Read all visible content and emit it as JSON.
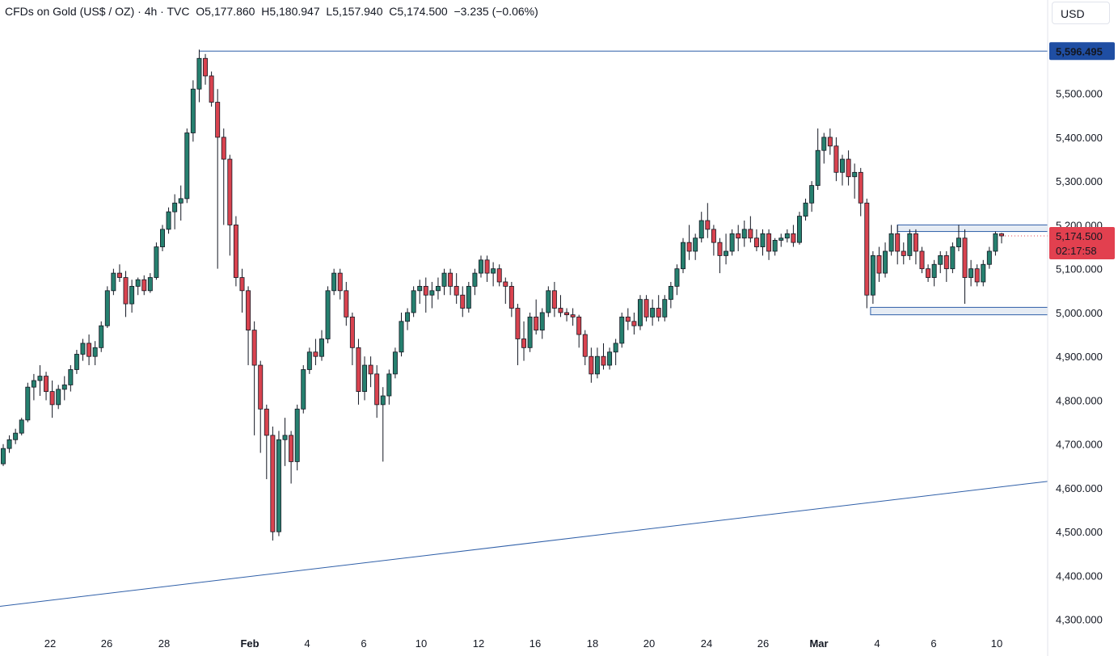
{
  "header": {
    "symbol": "CFDs on Gold (US$ / OZ)",
    "interval": "4h",
    "source": "TVC",
    "open": "O5,177.860",
    "high": "H5,180.947",
    "low": "L5,157.940",
    "close": "C5,174.500",
    "change": "−3.235 (−0.06%)"
  },
  "currency_button": "USD",
  "colors": {
    "up": "#26806f",
    "down": "#d9434f",
    "line": "#2f5fa8",
    "marker_bg": "#1f4ea3",
    "last_bg": "#e2404f"
  },
  "markers": {
    "high_level": "5,596.495",
    "last_price": "5,174.500",
    "countdown": "02:17:58"
  },
  "chart_data": {
    "type": "candlestick",
    "y_axis": {
      "ticks": [
        "5,500.000",
        "5,400.000",
        "5,300.000",
        "5,200.000",
        "5,100.000",
        "5,000.000",
        "4,900.000",
        "4,800.000",
        "4,700.000",
        "4,600.000",
        "4,500.000",
        "4,400.000",
        "4,300.000"
      ],
      "ylim": [
        4270,
        5680
      ]
    },
    "x_axis": {
      "ticks": [
        "22",
        "26",
        "28",
        "Feb",
        "4",
        "6",
        "10",
        "12",
        "16",
        "18",
        "20",
        "24",
        "26",
        "Mar",
        "4",
        "6",
        "10"
      ]
    },
    "levels": {
      "horizontal_high": 5596.495,
      "range_top": [
        5185,
        5200
      ],
      "range_bottom": [
        4995,
        5012
      ],
      "trendline": {
        "from": 4330,
        "to": 4615
      }
    },
    "ohlc": [
      [
        4655,
        4700,
        4650,
        4690
      ],
      [
        4690,
        4720,
        4680,
        4710
      ],
      [
        4710,
        4735,
        4700,
        4725
      ],
      [
        4725,
        4760,
        4720,
        4755
      ],
      [
        4755,
        4840,
        4750,
        4830
      ],
      [
        4830,
        4860,
        4800,
        4845
      ],
      [
        4845,
        4880,
        4810,
        4855
      ],
      [
        4855,
        4865,
        4800,
        4820
      ],
      [
        4820,
        4845,
        4760,
        4790
      ],
      [
        4790,
        4835,
        4780,
        4825
      ],
      [
        4825,
        4855,
        4800,
        4835
      ],
      [
        4835,
        4880,
        4820,
        4870
      ],
      [
        4870,
        4915,
        4860,
        4905
      ],
      [
        4905,
        4940,
        4890,
        4930
      ],
      [
        4930,
        4950,
        4880,
        4900
      ],
      [
        4900,
        4935,
        4880,
        4920
      ],
      [
        4920,
        4980,
        4910,
        4970
      ],
      [
        4970,
        5060,
        4965,
        5050
      ],
      [
        5050,
        5100,
        5040,
        5090
      ],
      [
        5090,
        5110,
        5070,
        5080
      ],
      [
        5080,
        5095,
        4990,
        5020
      ],
      [
        5020,
        5075,
        5000,
        5060
      ],
      [
        5060,
        5080,
        5040,
        5075
      ],
      [
        5075,
        5085,
        5040,
        5050
      ],
      [
        5050,
        5090,
        5045,
        5080
      ],
      [
        5080,
        5160,
        5075,
        5150
      ],
      [
        5150,
        5200,
        5140,
        5190
      ],
      [
        5190,
        5240,
        5180,
        5230
      ],
      [
        5230,
        5270,
        5190,
        5250
      ],
      [
        5250,
        5290,
        5210,
        5260
      ],
      [
        5260,
        5420,
        5250,
        5410
      ],
      [
        5410,
        5530,
        5390,
        5510
      ],
      [
        5510,
        5600,
        5480,
        5580
      ],
      [
        5580,
        5590,
        5520,
        5540
      ],
      [
        5540,
        5550,
        5470,
        5480
      ],
      [
        5480,
        5510,
        5100,
        5400
      ],
      [
        5400,
        5420,
        5200,
        5350
      ],
      [
        5350,
        5360,
        5130,
        5200
      ],
      [
        5200,
        5220,
        5060,
        5080
      ],
      [
        5080,
        5100,
        5000,
        5050
      ],
      [
        5050,
        5060,
        4880,
        4960
      ],
      [
        4960,
        4980,
        4720,
        4880
      ],
      [
        4880,
        4890,
        4680,
        4780
      ],
      [
        4780,
        4790,
        4620,
        4720
      ],
      [
        4720,
        4740,
        4480,
        4500
      ],
      [
        4500,
        4730,
        4490,
        4710
      ],
      [
        4710,
        4760,
        4650,
        4720
      ],
      [
        4720,
        4730,
        4610,
        4660
      ],
      [
        4660,
        4790,
        4640,
        4780
      ],
      [
        4780,
        4880,
        4770,
        4870
      ],
      [
        4870,
        4920,
        4860,
        4910
      ],
      [
        4910,
        4940,
        4880,
        4900
      ],
      [
        4900,
        4960,
        4890,
        4940
      ],
      [
        4940,
        5060,
        4930,
        5050
      ],
      [
        5050,
        5100,
        5040,
        5090
      ],
      [
        5090,
        5100,
        5030,
        5050
      ],
      [
        5050,
        5070,
        4970,
        4990
      ],
      [
        4990,
        5000,
        4880,
        4920
      ],
      [
        4920,
        4940,
        4790,
        4820
      ],
      [
        4820,
        4900,
        4800,
        4880
      ],
      [
        4880,
        4900,
        4830,
        4860
      ],
      [
        4860,
        4880,
        4760,
        4790
      ],
      [
        4790,
        4830,
        4660,
        4810
      ],
      [
        4810,
        4870,
        4790,
        4860
      ],
      [
        4860,
        4920,
        4850,
        4910
      ],
      [
        4910,
        5000,
        4900,
        4980
      ],
      [
        4980,
        5010,
        4960,
        5000
      ],
      [
        5000,
        5060,
        4990,
        5050
      ],
      [
        5050,
        5075,
        5020,
        5060
      ],
      [
        5060,
        5080,
        5000,
        5040
      ],
      [
        5040,
        5070,
        5010,
        5050
      ],
      [
        5050,
        5080,
        5030,
        5060
      ],
      [
        5060,
        5100,
        5040,
        5090
      ],
      [
        5090,
        5100,
        5040,
        5060
      ],
      [
        5060,
        5090,
        5020,
        5040
      ],
      [
        5040,
        5060,
        4990,
        5010
      ],
      [
        5010,
        5070,
        5000,
        5060
      ],
      [
        5060,
        5100,
        5040,
        5090
      ],
      [
        5090,
        5130,
        5080,
        5120
      ],
      [
        5120,
        5130,
        5070,
        5090
      ],
      [
        5090,
        5115,
        5060,
        5100
      ],
      [
        5100,
        5110,
        5060,
        5070
      ],
      [
        5070,
        5080,
        5020,
        5060
      ],
      [
        5060,
        5070,
        4990,
        5010
      ],
      [
        5010,
        5020,
        4880,
        4940
      ],
      [
        4940,
        4980,
        4890,
        4920
      ],
      [
        4920,
        5000,
        4910,
        4990
      ],
      [
        4990,
        5030,
        4950,
        4960
      ],
      [
        4960,
        5010,
        4940,
        5000
      ],
      [
        5000,
        5060,
        4990,
        5050
      ],
      [
        5050,
        5070,
        4990,
        5010
      ],
      [
        5010,
        5040,
        4990,
        5000
      ],
      [
        5000,
        5010,
        4980,
        4995
      ],
      [
        4995,
        5010,
        4970,
        4990
      ],
      [
        4990,
        4995,
        4920,
        4950
      ],
      [
        4950,
        4960,
        4880,
        4900
      ],
      [
        4900,
        4920,
        4840,
        4860
      ],
      [
        4860,
        4920,
        4850,
        4900
      ],
      [
        4900,
        4930,
        4870,
        4880
      ],
      [
        4880,
        4920,
        4870,
        4910
      ],
      [
        4910,
        4940,
        4880,
        4930
      ],
      [
        4930,
        5000,
        4920,
        4990
      ],
      [
        4990,
        5010,
        4960,
        4980
      ],
      [
        4980,
        5000,
        4950,
        4970
      ],
      [
        4970,
        5040,
        4960,
        5030
      ],
      [
        5030,
        5040,
        4980,
        4990
      ],
      [
        4990,
        5030,
        4970,
        5010
      ],
      [
        5010,
        5040,
        4980,
        4990
      ],
      [
        4990,
        5040,
        4980,
        5030
      ],
      [
        5030,
        5070,
        5010,
        5060
      ],
      [
        5060,
        5110,
        5040,
        5100
      ],
      [
        5100,
        5170,
        5090,
        5160
      ],
      [
        5160,
        5200,
        5120,
        5140
      ],
      [
        5140,
        5180,
        5120,
        5170
      ],
      [
        5170,
        5230,
        5160,
        5210
      ],
      [
        5210,
        5250,
        5170,
        5190
      ],
      [
        5190,
        5200,
        5130,
        5160
      ],
      [
        5160,
        5170,
        5090,
        5130
      ],
      [
        5130,
        5180,
        5110,
        5140
      ],
      [
        5140,
        5190,
        5130,
        5180
      ],
      [
        5180,
        5200,
        5140,
        5170
      ],
      [
        5170,
        5210,
        5150,
        5190
      ],
      [
        5190,
        5220,
        5160,
        5170
      ],
      [
        5170,
        5190,
        5140,
        5150
      ],
      [
        5150,
        5190,
        5130,
        5180
      ],
      [
        5180,
        5190,
        5120,
        5140
      ],
      [
        5140,
        5170,
        5130,
        5165
      ],
      [
        5165,
        5180,
        5150,
        5170
      ],
      [
        5170,
        5190,
        5160,
        5180
      ],
      [
        5180,
        5200,
        5150,
        5160
      ],
      [
        5160,
        5230,
        5155,
        5220
      ],
      [
        5220,
        5260,
        5210,
        5250
      ],
      [
        5250,
        5300,
        5230,
        5290
      ],
      [
        5290,
        5420,
        5280,
        5370
      ],
      [
        5370,
        5410,
        5340,
        5400
      ],
      [
        5400,
        5420,
        5360,
        5380
      ],
      [
        5380,
        5400,
        5300,
        5320
      ],
      [
        5320,
        5360,
        5290,
        5350
      ],
      [
        5350,
        5370,
        5290,
        5310
      ],
      [
        5310,
        5340,
        5260,
        5320
      ],
      [
        5320,
        5330,
        5220,
        5250
      ],
      [
        5250,
        5260,
        5010,
        5040
      ],
      [
        5040,
        5140,
        5020,
        5130
      ],
      [
        5130,
        5150,
        5070,
        5090
      ],
      [
        5090,
        5160,
        5080,
        5140
      ],
      [
        5140,
        5200,
        5130,
        5180
      ],
      [
        5180,
        5200,
        5110,
        5140
      ],
      [
        5140,
        5160,
        5110,
        5130
      ],
      [
        5130,
        5190,
        5120,
        5180
      ],
      [
        5180,
        5190,
        5110,
        5140
      ],
      [
        5140,
        5150,
        5090,
        5100
      ],
      [
        5100,
        5110,
        5070,
        5080
      ],
      [
        5080,
        5120,
        5060,
        5110
      ],
      [
        5110,
        5140,
        5090,
        5130
      ],
      [
        5130,
        5140,
        5070,
        5100
      ],
      [
        5100,
        5160,
        5090,
        5150
      ],
      [
        5150,
        5200,
        5140,
        5170
      ],
      [
        5170,
        5190,
        5020,
        5080
      ],
      [
        5080,
        5120,
        5060,
        5100
      ],
      [
        5100,
        5110,
        5060,
        5070
      ],
      [
        5070,
        5120,
        5060,
        5110
      ],
      [
        5110,
        5150,
        5100,
        5140
      ],
      [
        5140,
        5185,
        5130,
        5180
      ],
      [
        5180,
        5182,
        5158,
        5175
      ]
    ]
  }
}
